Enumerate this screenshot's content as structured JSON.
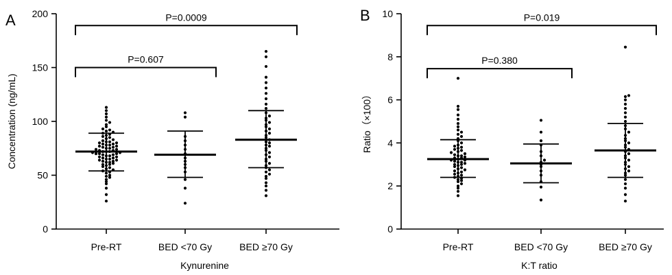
{
  "chart_data": [
    {
      "type": "scatter",
      "panel_letter": "A",
      "xlabel": "Kynurenine",
      "ylabel": "Concentration (ng/mL)",
      "ylim": [
        0,
        200
      ],
      "yticks": [
        0,
        50,
        100,
        150,
        200
      ],
      "categories": [
        "Pre-RT",
        "BED <70 Gy",
        "BED ≥70 Gy"
      ],
      "summary": [
        {
          "category": "Pre-RT",
          "mean": 72,
          "sd_low": 54,
          "sd_high": 89
        },
        {
          "category": "BED <70 Gy",
          "mean": 69,
          "sd_low": 48,
          "sd_high": 91
        },
        {
          "category": "BED ≥70 Gy",
          "mean": 83,
          "sd_low": 57,
          "sd_high": 110
        }
      ],
      "points": [
        [
          26,
          32,
          38,
          42,
          44,
          46,
          48,
          49,
          50,
          52,
          53,
          54,
          55,
          56,
          57,
          58,
          59,
          60,
          60,
          61,
          62,
          62,
          63,
          63,
          64,
          64,
          65,
          65,
          66,
          66,
          67,
          67,
          68,
          68,
          69,
          69,
          70,
          70,
          70,
          71,
          71,
          72,
          72,
          72,
          73,
          73,
          74,
          74,
          75,
          75,
          76,
          76,
          77,
          77,
          78,
          78,
          79,
          79,
          80,
          80,
          81,
          81,
          82,
          83,
          84,
          85,
          86,
          87,
          88,
          89,
          90,
          91,
          92,
          93,
          95,
          97,
          99,
          101,
          104,
          107,
          110,
          113
        ],
        [
          24,
          38,
          46,
          53,
          57,
          60,
          63,
          66,
          70,
          74,
          78,
          82,
          86,
          104,
          108
        ],
        [
          31,
          36,
          40,
          43,
          47,
          49,
          51,
          53,
          55,
          57,
          59,
          61,
          63,
          65,
          67,
          69,
          71,
          73,
          75,
          77,
          78,
          80,
          81,
          83,
          85,
          87,
          89,
          91,
          93,
          95,
          97,
          99,
          101,
          103,
          105,
          108,
          112,
          116,
          121,
          126,
          131,
          136,
          141,
          151,
          160,
          165
        ]
      ],
      "comparisons": [
        {
          "label": "P=0.607",
          "from": "Pre-RT",
          "to": "BED <70 Gy",
          "level": 150
        },
        {
          "label": "P=0.0009",
          "from": "Pre-RT",
          "to": "BED ≥70 Gy",
          "level": 189
        }
      ]
    },
    {
      "type": "scatter",
      "panel_letter": "B",
      "xlabel": "K:T ratio",
      "ylabel": "Ratio（×100）",
      "ylim": [
        0,
        10
      ],
      "yticks": [
        0,
        2,
        4,
        6,
        8,
        10
      ],
      "categories": [
        "Pre-RT",
        "BED <70 Gy",
        "BED ≥70 Gy"
      ],
      "summary": [
        {
          "category": "Pre-RT",
          "mean": 3.25,
          "sd_low": 2.4,
          "sd_high": 4.15
        },
        {
          "category": "BED <70 Gy",
          "mean": 3.05,
          "sd_low": 2.15,
          "sd_high": 3.95
        },
        {
          "category": "BED ≥70 Gy",
          "mean": 3.65,
          "sd_low": 2.4,
          "sd_high": 4.9
        }
      ],
      "points": [
        [
          1.55,
          1.75,
          1.9,
          2.0,
          2.1,
          2.2,
          2.25,
          2.3,
          2.35,
          2.4,
          2.45,
          2.5,
          2.55,
          2.6,
          2.65,
          2.7,
          2.75,
          2.8,
          2.85,
          2.9,
          2.95,
          3.0,
          3.0,
          3.05,
          3.1,
          3.1,
          3.15,
          3.2,
          3.2,
          3.25,
          3.3,
          3.3,
          3.35,
          3.4,
          3.4,
          3.45,
          3.5,
          3.55,
          3.6,
          3.65,
          3.7,
          3.75,
          3.8,
          3.85,
          3.9,
          4.0,
          4.1,
          4.2,
          4.3,
          4.4,
          4.5,
          4.6,
          4.75,
          4.9,
          5.1,
          5.3,
          5.55,
          5.7,
          7.0
        ],
        [
          1.35,
          1.95,
          2.2,
          2.5,
          2.7,
          2.9,
          3.0,
          3.1,
          3.2,
          3.4,
          3.6,
          3.9,
          4.1,
          4.5,
          5.05
        ],
        [
          1.3,
          1.6,
          1.9,
          2.1,
          2.3,
          2.5,
          2.6,
          2.7,
          2.8,
          2.9,
          3.0,
          3.1,
          3.2,
          3.3,
          3.4,
          3.5,
          3.6,
          3.7,
          3.8,
          3.9,
          4.0,
          4.1,
          4.2,
          4.35,
          4.5,
          4.65,
          4.8,
          5.0,
          5.2,
          5.4,
          5.6,
          5.8,
          6.0,
          6.15,
          6.2,
          8.45
        ]
      ],
      "comparisons": [
        {
          "label": "P=0.380",
          "from": "Pre-RT",
          "to": "BED <70 Gy",
          "level": 7.45
        },
        {
          "label": "P=0.019",
          "from": "Pre-RT",
          "to": "BED ≥70 Gy",
          "level": 9.45
        }
      ]
    }
  ]
}
